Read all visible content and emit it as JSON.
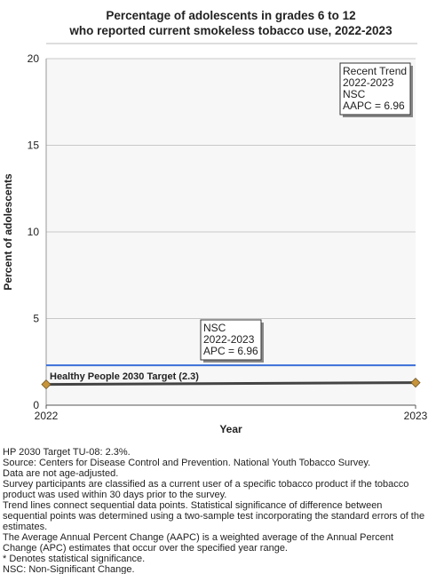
{
  "chart_data": {
    "type": "line",
    "title": [
      "Percentage of adolescents in grades 6 to 12",
      "who reported current smokeless tobacco use, 2022-2023"
    ],
    "x_label": "Year",
    "y_label": "Percent of adolescents",
    "x": [
      2022,
      2023
    ],
    "xlim": [
      2022,
      2023
    ],
    "xticks": [
      2022,
      2023
    ],
    "ylim": [
      0,
      20
    ],
    "yticks": [
      0,
      5,
      10,
      15,
      20
    ],
    "grid": true,
    "series": [
      {
        "color": "#444444",
        "marker_color": "#c8943a",
        "values": [
          1.2,
          1.3
        ]
      }
    ],
    "target": {
      "value": 2.3,
      "label": "Healthy People 2030 Target (2.3)",
      "color": "#3a6fd8"
    },
    "annotations": [
      {
        "lines": [
          "NSC",
          "2022-2023",
          "APC =  6.96"
        ]
      },
      {
        "lines": [
          "Recent Trend",
          "2022-2023",
          "NSC",
          "AAPC =  6.96"
        ]
      }
    ],
    "footnotes": [
      "HP 2030 Target TU-08: 2.3%.",
      "Source: Centers for Disease Control and Prevention. National Youth Tobacco Survey.",
      "Data are not age-adjusted.",
      "Survey participants are classified as a current user of a specific tobacco product if the tobacco",
      "product was used within 30 days prior to the survey.",
      "Trend lines connect sequential data points. Statistical significance of difference between",
      "sequential points was determined using a two-sample test incorporating the standard errors of the",
      "estimates.",
      "The Average Annual Percent Change (AAPC) is a weighted average of the Annual Percent",
      "Change (APC) estimates that occur over the specified year range.",
      "* Denotes statistical significance.",
      "NSC: Non-Significant Change."
    ]
  }
}
